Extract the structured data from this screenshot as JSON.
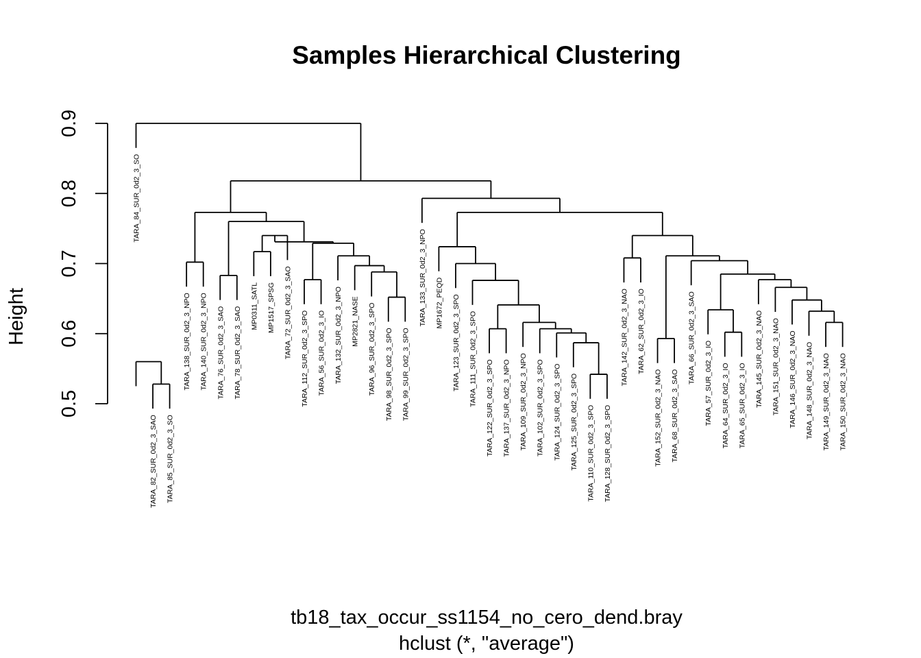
{
  "chart_data": {
    "type": "dendrogram",
    "title": "Samples Hierarchical Clustering",
    "ylabel": "Height",
    "xlabel": "tb18_tax_occur_ss1154_no_cero_dend.bray",
    "sublabel": "hclust (*, \"average\")",
    "ylim": [
      0.5,
      0.9
    ],
    "yticks": [
      "0.5",
      "0.6",
      "0.7",
      "0.8",
      "0.9"
    ],
    "label_offset": 0.035,
    "leaves": [
      "TARA_84_SUR_0d2_3_SO",
      "TARA_82_SUR_0d2_3_SAO",
      "TARA_85_SUR_0d2_3_SO",
      "TARA_138_SUR_0d2_3_NPO",
      "TARA_140_SUR_0d2_3_NPO",
      "TARA_76_SUR_0d2_3_SAO",
      "TARA_78_SUR_0d2_3_SAO",
      "MP0311_SATL",
      "MP1517_SPSG",
      "TARA_72_SUR_0d2_3_SAO",
      "TARA_112_SUR_0d2_3_SPO",
      "TARA_56_SUR_0d2_3_IO",
      "TARA_132_SUR_0d2_3_NPO",
      "MP2821_NASE",
      "TARA_96_SUR_0d2_3_SPO",
      "TARA_98_SUR_0d2_3_SPO",
      "TARA_99_SUR_0d2_3_SPO",
      "TARA_133_SUR_0d2_3_NPO",
      "MP1672_PEQD",
      "TARA_123_SUR_0d2_3_SPO",
      "TARA_111_SUR_0d2_3_SPO",
      "TARA_122_SUR_0d2_3_SPO",
      "TARA_137_SUR_0d2_3_NPO",
      "TARA_109_SUR_0d2_3_NPO",
      "TARA_102_SUR_0d2_3_SPO",
      "TARA_124_SUR_0d2_3_SPO",
      "TARA_125_SUR_0d2_3_SPO",
      "TARA_110_SUR_0d2_3_SPO",
      "TARA_128_SUR_0d2_3_SPO",
      "TARA_142_SUR_0d2_3_NAO",
      "TARA_62_SUR_0d2_3_IO",
      "TARA_152_SUR_0d2_3_NAO",
      "TARA_68_SUR_0d2_3_SAO",
      "TARA_66_SUR_0d2_3_SAO",
      "TARA_57_SUR_0d2_3_IO",
      "TARA_64_SUR_0d2_3_IO",
      "TARA_65_SUR_0d2_3_IO",
      "TARA_145_SUR_0d2_3_NAO",
      "TARA_151_SUR_0d2_3_NAO",
      "TARA_146_SUR_0d2_3_NAO",
      "TARA_148_SUR_0d2_3_NAO",
      "TARA_149_SUR_0d2_3_NAO",
      "TARA_150_SUR_0d2_3_NAO"
    ],
    "merges": [
      [
        2,
        3,
        0.528
      ],
      [
        1,
        "m1",
        0.56
      ],
      [
        4,
        5,
        0.702
      ],
      [
        6,
        7,
        0.683
      ],
      [
        8,
        9,
        0.717
      ],
      [
        11,
        12,
        0.677
      ],
      [
        16,
        17,
        0.652
      ],
      [
        15,
        "m7",
        0.688
      ],
      [
        14,
        "m8",
        0.697
      ],
      [
        13,
        "m9",
        0.711
      ],
      [
        10,
        "m5",
        0.74
      ],
      [
        "m6",
        "m10",
        0.729
      ],
      [
        "m11",
        "m12",
        0.731
      ],
      [
        "m4",
        "m13",
        0.76
      ],
      [
        "m3",
        "m14",
        0.773
      ],
      [
        28,
        29,
        0.542
      ],
      [
        27,
        "m16",
        0.587
      ],
      [
        26,
        "m17",
        0.601
      ],
      [
        25,
        "m18",
        0.607
      ],
      [
        24,
        "m19",
        0.616
      ],
      [
        22,
        23,
        0.607
      ],
      [
        "m21",
        "m20",
        0.641
      ],
      [
        21,
        "m22",
        0.676
      ],
      [
        20,
        "m23",
        0.7
      ],
      [
        19,
        "m24",
        0.724
      ],
      [
        30,
        31,
        0.708
      ],
      [
        32,
        33,
        0.593
      ],
      [
        36,
        37,
        0.602
      ],
      [
        35,
        "m28",
        0.634
      ],
      [
        42,
        43,
        0.616
      ],
      [
        41,
        "m30",
        0.632
      ],
      [
        40,
        "m31",
        0.648
      ],
      [
        39,
        "m32",
        0.666
      ],
      [
        38,
        "m33",
        0.677
      ],
      [
        "m29",
        "m34",
        0.685
      ],
      [
        34,
        "m35",
        0.704
      ],
      [
        "m27",
        "m36",
        0.711
      ],
      [
        "m26",
        "m37",
        0.74
      ],
      [
        "m25",
        "m38",
        0.773
      ],
      [
        18,
        "m39",
        0.793
      ],
      [
        "m15",
        "m40",
        0.818
      ],
      [
        1,
        "m41",
        0.9
      ]
    ]
  }
}
